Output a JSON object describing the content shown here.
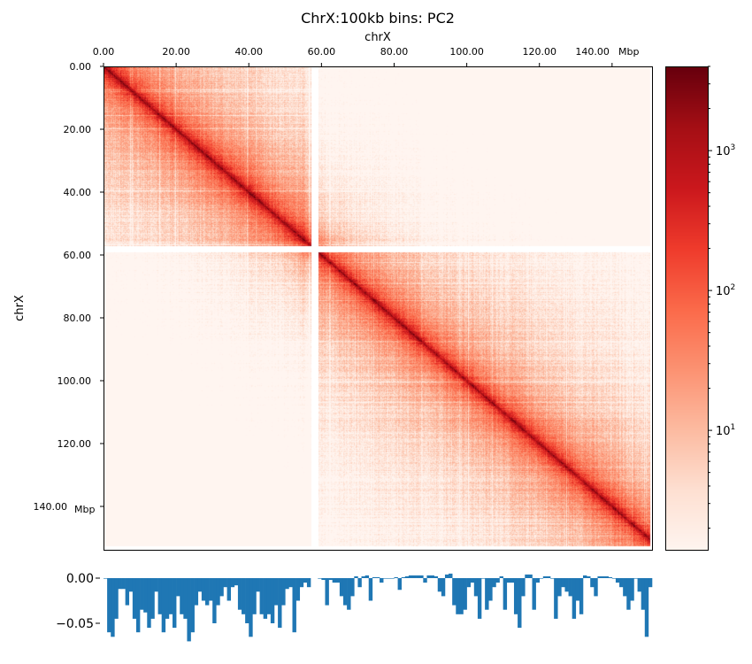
{
  "chart_data": [
    {
      "type": "heatmap",
      "title": "ChrX:100kb bins: PC2",
      "xlabel": "chrX",
      "ylabel": "chrX",
      "unit_label": "Mbp",
      "xticks": [
        "0.00",
        "20.00",
        "40.00",
        "60.00",
        "80.00",
        "100.00",
        "120.00",
        "140.00"
      ],
      "yticks": [
        "0.00",
        "20.00",
        "40.00",
        "60.00",
        "80.00",
        "100.00",
        "120.00",
        "140.00"
      ],
      "xtick_values": [
        0,
        20,
        40,
        60,
        80,
        100,
        120,
        140
      ],
      "ytick_values": [
        0,
        20,
        40,
        60,
        80,
        100,
        120,
        140
      ],
      "xlim": [
        0,
        151
      ],
      "ylim": [
        0,
        153.8
      ],
      "unmapped_gap_mbp": [
        57,
        59
      ],
      "colormap": "Reds",
      "colorbar": {
        "scale": "log",
        "range": [
          1.4,
          4000
        ],
        "ticks": [
          {
            "base": "10",
            "exp": "3",
            "value": 1000
          },
          {
            "base": "10",
            "exp": "2",
            "value": 100
          },
          {
            "base": "10",
            "exp": "1",
            "value": 10
          }
        ]
      }
    },
    {
      "type": "area",
      "name": "PC2",
      "x_step_mbp": 1,
      "ylim": [
        -0.075,
        0.012
      ],
      "yticks": [
        "0.00",
        "−0.05"
      ],
      "ytick_values": [
        0,
        -0.05
      ],
      "color": "#1f77b4",
      "values": [
        0,
        -0.06,
        -0.065,
        -0.045,
        -0.012,
        -0.012,
        -0.03,
        -0.015,
        -0.045,
        -0.06,
        -0.035,
        -0.038,
        -0.055,
        -0.045,
        -0.015,
        -0.04,
        -0.06,
        -0.045,
        -0.04,
        -0.055,
        -0.02,
        -0.04,
        -0.045,
        -0.07,
        -0.06,
        -0.03,
        -0.015,
        -0.025,
        -0.03,
        -0.025,
        -0.05,
        -0.03,
        -0.02,
        -0.01,
        -0.025,
        -0.01,
        -0.008,
        -0.035,
        -0.04,
        -0.05,
        -0.065,
        -0.04,
        -0.015,
        -0.04,
        -0.045,
        -0.04,
        -0.05,
        -0.03,
        -0.055,
        -0.03,
        -0.012,
        -0.01,
        -0.06,
        -0.025,
        -0.01,
        -0.005,
        -0.01,
        null,
        null,
        0,
        -0.002,
        -0.03,
        -0.002,
        -0.005,
        -0.005,
        -0.02,
        -0.03,
        -0.035,
        -0.02,
        0.002,
        -0.01,
        0.002,
        0.003,
        -0.025,
        0.001,
        0.001,
        -0.005,
        0,
        0,
        0,
        0.001,
        -0.013,
        0.001,
        0.002,
        0.003,
        0.003,
        0.003,
        0.003,
        -0.005,
        0.003,
        0.003,
        0.002,
        -0.015,
        -0.02,
        0.004,
        0.005,
        -0.03,
        -0.04,
        -0.04,
        -0.035,
        -0.01,
        -0.005,
        -0.02,
        -0.045,
        0,
        -0.035,
        -0.025,
        -0.01,
        -0.005,
        0.002,
        -0.035,
        -0.005,
        -0.005,
        -0.04,
        -0.055,
        -0.02,
        0.004,
        0.004,
        -0.035,
        -0.005,
        0,
        0.002,
        0.002,
        0,
        -0.045,
        -0.02,
        -0.01,
        -0.015,
        -0.02,
        -0.045,
        -0.025,
        -0.04,
        0.003,
        0.002,
        -0.01,
        -0.02,
        0.002,
        0.002,
        0.002,
        0.001,
        0,
        -0.005,
        -0.01,
        -0.02,
        -0.035,
        -0.025,
        0,
        -0.015,
        -0.035,
        -0.065,
        -0.01
      ]
    }
  ]
}
